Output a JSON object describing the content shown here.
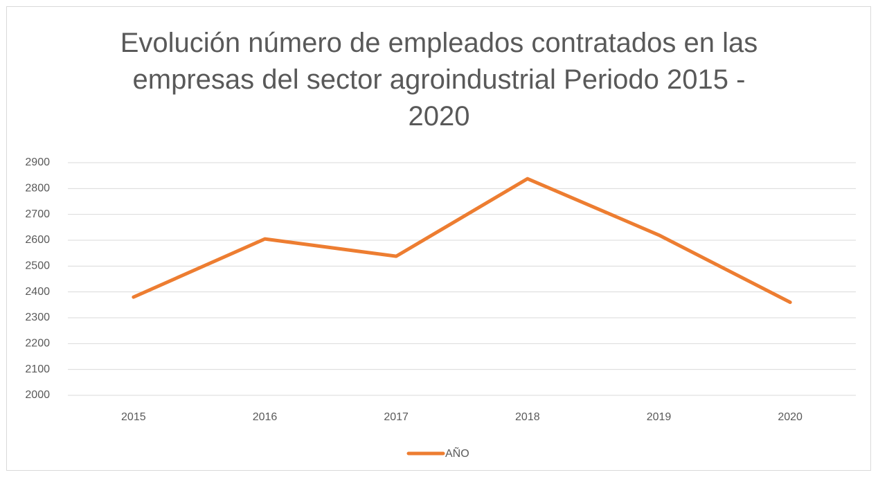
{
  "chart_data": {
    "type": "line",
    "title": "Evolución número de empleados contratados en las empresas del sector agroindustrial Periodo 2015 - 2020",
    "categories": [
      "2015",
      "2016",
      "2017",
      "2018",
      "2019",
      "2020"
    ],
    "series": [
      {
        "name": "AÑO",
        "color": "#ed7d31",
        "values": [
          2380,
          2605,
          2538,
          2838,
          2620,
          2360
        ]
      }
    ],
    "ylim": [
      2000,
      2900
    ],
    "yticks": [
      2000,
      2100,
      2200,
      2300,
      2400,
      2500,
      2600,
      2700,
      2800,
      2900
    ],
    "grid": true,
    "legend": "bottom"
  }
}
